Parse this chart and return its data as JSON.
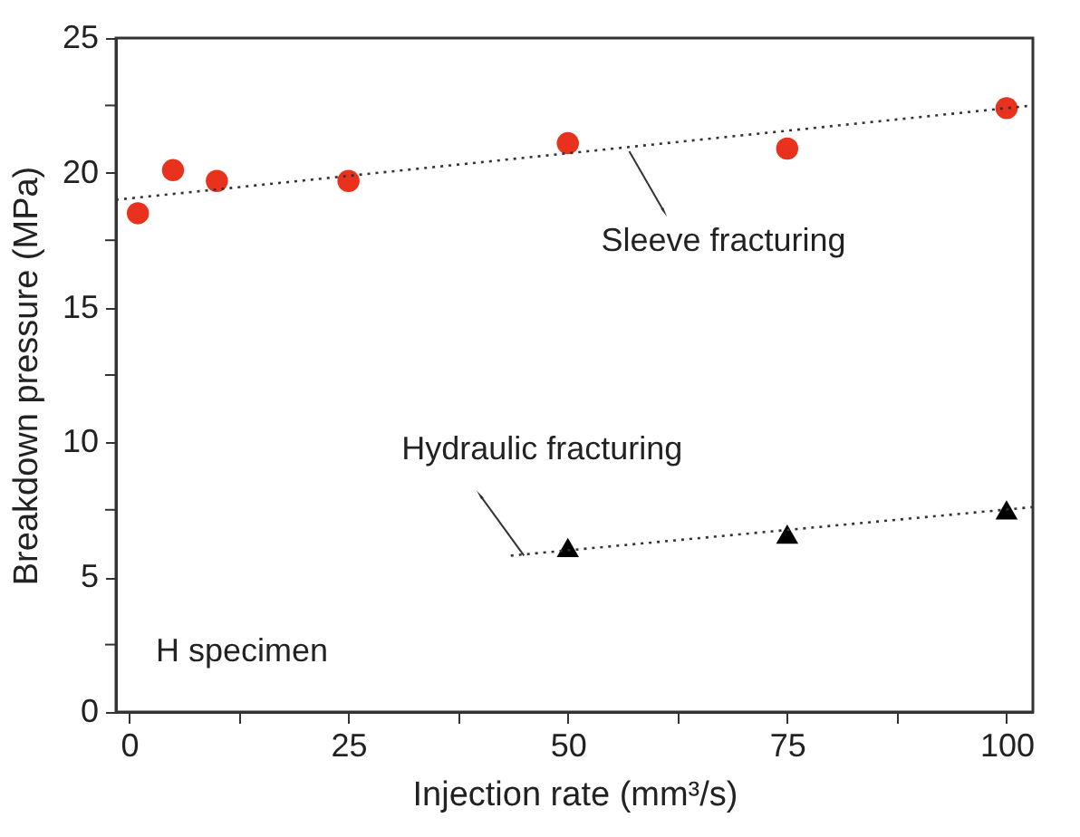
{
  "chart_data": {
    "type": "scatter",
    "xlabel": "Injection rate (mm³/s)",
    "ylabel": "Breakdown pressure (MPa)",
    "xlim": [
      -1.5,
      103
    ],
    "ylim": [
      0,
      25
    ],
    "xticks": [
      0,
      {
        "value": 12.5,
        "label": null
      },
      25,
      {
        "value": 37.5,
        "label": null
      },
      50,
      {
        "value": 62.5,
        "label": null
      },
      75,
      {
        "value": 87.5,
        "label": null
      },
      100
    ],
    "yticks": [
      0,
      {
        "value": 2.5,
        "label": null
      },
      5,
      {
        "value": 7.5,
        "label": null
      },
      10,
      {
        "value": 12.5,
        "label": null
      },
      15,
      {
        "value": 17.5,
        "label": null
      },
      20,
      {
        "value": 22.5,
        "label": null
      },
      25
    ],
    "grid": false,
    "series": [
      {
        "type": "scatter",
        "marker": "circle",
        "color": "#e8321e",
        "x": [
          1,
          5,
          10,
          25,
          50,
          75,
          100
        ],
        "values": [
          18.5,
          20.1,
          19.7,
          19.7,
          21.1,
          20.9,
          22.4
        ]
      },
      {
        "type": "scatter",
        "marker": "triangle",
        "color": "#000000",
        "x": [
          50,
          75,
          100
        ],
        "values": [
          6.1,
          6.6,
          7.5
        ]
      },
      {
        "type": "line",
        "line_style": "dotted",
        "color": "#333333",
        "x": [
          -1.5,
          103
        ],
        "values": [
          19.0,
          22.5
        ]
      },
      {
        "type": "line",
        "line_style": "dotted",
        "color": "#333333",
        "x": [
          43.5,
          103
        ],
        "values": [
          5.8,
          7.6
        ]
      }
    ],
    "annotations": [
      {
        "text": "Sleeve fracturing",
        "x": 57,
        "y": 20.8
      },
      {
        "text": "Hydraulic fracturing",
        "x": 45,
        "y": 5.8
      },
      "H specimen"
    ]
  }
}
